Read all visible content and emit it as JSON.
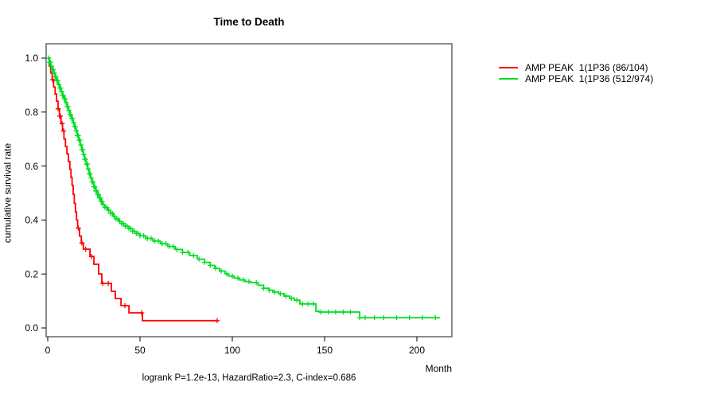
{
  "figure": {
    "title": "Time to Death",
    "x_axis_label": "Month",
    "y_axis_label": "cumulative survival rate",
    "footer": "logrank P=1.2e-13, HazardRatio=2.3, C-index=0.686"
  },
  "legend": {
    "items": [
      {
        "label": "AMP PEAK  1(1P36 (86/104)",
        "color": "#ff0000"
      },
      {
        "label": "AMP PEAK  1(1P36 (512/974)",
        "color": "#00dd22"
      }
    ]
  },
  "chart_data": {
    "type": "line",
    "subtype": "kaplan-meier-step",
    "title": "Time to Death",
    "xlabel": "Month",
    "ylabel": "cumulative survival rate",
    "xlim": [
      0,
      219
    ],
    "ylim": [
      0,
      1.05
    ],
    "grid": false,
    "legend_position": "right-outside",
    "x_ticks": [
      0,
      50,
      100,
      150,
      200
    ],
    "y_tick_labels": [
      "0.0",
      "0.2",
      "0.4",
      "0.6",
      "0.8",
      "1.0"
    ],
    "annotation": "logrank P=1.2e-13, HazardRatio=2.3, C-index=0.686",
    "series": [
      {
        "name": "AMP PEAK  1(1P36 (86/104)",
        "color": "#ff0000",
        "events": "86/104",
        "steps": [
          [
            0,
            1.0
          ],
          [
            0.8,
            0.97
          ],
          [
            1.6,
            0.945
          ],
          [
            2.4,
            0.92
          ],
          [
            3.2,
            0.893
          ],
          [
            4,
            0.867
          ],
          [
            4.8,
            0.84
          ],
          [
            5.6,
            0.812
          ],
          [
            6.4,
            0.785
          ],
          [
            7.2,
            0.757
          ],
          [
            8,
            0.73
          ],
          [
            8.8,
            0.7
          ],
          [
            9.6,
            0.672
          ],
          [
            10.4,
            0.645
          ],
          [
            11.2,
            0.617
          ],
          [
            12,
            0.588
          ],
          [
            12.6,
            0.558
          ],
          [
            13.2,
            0.528
          ],
          [
            13.8,
            0.495
          ],
          [
            14.4,
            0.462
          ],
          [
            15,
            0.43
          ],
          [
            15.6,
            0.4
          ],
          [
            16.2,
            0.37
          ],
          [
            17.2,
            0.34
          ],
          [
            18.2,
            0.315
          ],
          [
            19.3,
            0.292
          ],
          [
            22.9,
            0.265
          ],
          [
            25,
            0.236
          ],
          [
            27.6,
            0.2
          ],
          [
            29.3,
            0.165
          ],
          [
            34.5,
            0.136
          ],
          [
            36.6,
            0.109
          ],
          [
            39.7,
            0.083
          ],
          [
            44,
            0.056
          ],
          [
            51.3,
            0.027
          ],
          [
            91.8,
            0.027
          ]
        ],
        "censor_months": [
          2.6,
          5.6,
          6.4,
          6.9,
          7.8,
          8.6,
          16.6,
          18.5,
          20.5,
          23.7,
          29.8,
          32.8,
          41.8,
          50.9,
          91.8
        ]
      },
      {
        "name": "AMP PEAK  1(1P36 (512/974)",
        "color": "#00dd22",
        "events": "512/974",
        "steps": [
          [
            0,
            1.0
          ],
          [
            0.8,
            0.985
          ],
          [
            1.6,
            0.97
          ],
          [
            2.4,
            0.957
          ],
          [
            3.2,
            0.945
          ],
          [
            4,
            0.93
          ],
          [
            4.8,
            0.916
          ],
          [
            5.6,
            0.902
          ],
          [
            6.4,
            0.889
          ],
          [
            7.2,
            0.876
          ],
          [
            8,
            0.862
          ],
          [
            8.8,
            0.849
          ],
          [
            9.6,
            0.835
          ],
          [
            10.4,
            0.82
          ],
          [
            11.2,
            0.806
          ],
          [
            12,
            0.791
          ],
          [
            12.8,
            0.776
          ],
          [
            13.6,
            0.761
          ],
          [
            14.4,
            0.746
          ],
          [
            15.2,
            0.731
          ],
          [
            16,
            0.713
          ],
          [
            16.8,
            0.696
          ],
          [
            17.6,
            0.678
          ],
          [
            18.4,
            0.661
          ],
          [
            19.2,
            0.643
          ],
          [
            20,
            0.625
          ],
          [
            20.8,
            0.607
          ],
          [
            21.6,
            0.589
          ],
          [
            22.4,
            0.571
          ],
          [
            23.2,
            0.556
          ],
          [
            24,
            0.541
          ],
          [
            25,
            0.523
          ],
          [
            26,
            0.508
          ],
          [
            27,
            0.494
          ],
          [
            28,
            0.481
          ],
          [
            29,
            0.468
          ],
          [
            30,
            0.457
          ],
          [
            31,
            0.447
          ],
          [
            32.5,
            0.436
          ],
          [
            34,
            0.425
          ],
          [
            35.5,
            0.414
          ],
          [
            37,
            0.404
          ],
          [
            38.5,
            0.395
          ],
          [
            40,
            0.387
          ],
          [
            42,
            0.377
          ],
          [
            44,
            0.368
          ],
          [
            46,
            0.358
          ],
          [
            48,
            0.35
          ],
          [
            50,
            0.342
          ],
          [
            53,
            0.332
          ],
          [
            57,
            0.322
          ],
          [
            61,
            0.312
          ],
          [
            65,
            0.302
          ],
          [
            69,
            0.291
          ],
          [
            73,
            0.28
          ],
          [
            77,
            0.268
          ],
          [
            81,
            0.255
          ],
          [
            85,
            0.243
          ],
          [
            88,
            0.232
          ],
          [
            90.5,
            0.221
          ],
          [
            93,
            0.211
          ],
          [
            96,
            0.201
          ],
          [
            98,
            0.192
          ],
          [
            101,
            0.185
          ],
          [
            104,
            0.178
          ],
          [
            107,
            0.172
          ],
          [
            110,
            0.168
          ],
          [
            114,
            0.158
          ],
          [
            117,
            0.147
          ],
          [
            120,
            0.14
          ],
          [
            122,
            0.133
          ],
          [
            125,
            0.127
          ],
          [
            128,
            0.118
          ],
          [
            131,
            0.11
          ],
          [
            133.6,
            0.103
          ],
          [
            136.6,
            0.089
          ],
          [
            145.3,
            0.062
          ],
          [
            147,
            0.059
          ],
          [
            169,
            0.038
          ],
          [
            212.5,
            0.038
          ]
        ],
        "censor_months": [
          0.5,
          1,
          1.5,
          2,
          2.5,
          3,
          3.5,
          4,
          4.5,
          5,
          5.5,
          6,
          6.5,
          7,
          7.5,
          8,
          8.5,
          9,
          9.5,
          10,
          10.5,
          11,
          11.5,
          12,
          12.5,
          13,
          13.5,
          14,
          14.5,
          15,
          15.5,
          16,
          16.5,
          17,
          17.5,
          18,
          18.5,
          19,
          19.5,
          20,
          20.5,
          21,
          21.5,
          22,
          22.5,
          23,
          23.5,
          24,
          24.5,
          25,
          25.5,
          26,
          26.5,
          27,
          27.5,
          28,
          28.5,
          29,
          29.5,
          30,
          31,
          32,
          33,
          34,
          35,
          36,
          37,
          38,
          39,
          40,
          41,
          42,
          43,
          44,
          45,
          46,
          47,
          48,
          49,
          50,
          52,
          54,
          56,
          58,
          60,
          62,
          64,
          66,
          68,
          70,
          73,
          76,
          79,
          82,
          85,
          88,
          91,
          94,
          97,
          100,
          103,
          106,
          109,
          113,
          117,
          120,
          123,
          126,
          129,
          132,
          135,
          138,
          141,
          144,
          148,
          152,
          156,
          160,
          164,
          169,
          172,
          177,
          182,
          189,
          196,
          203,
          210
        ]
      }
    ]
  }
}
